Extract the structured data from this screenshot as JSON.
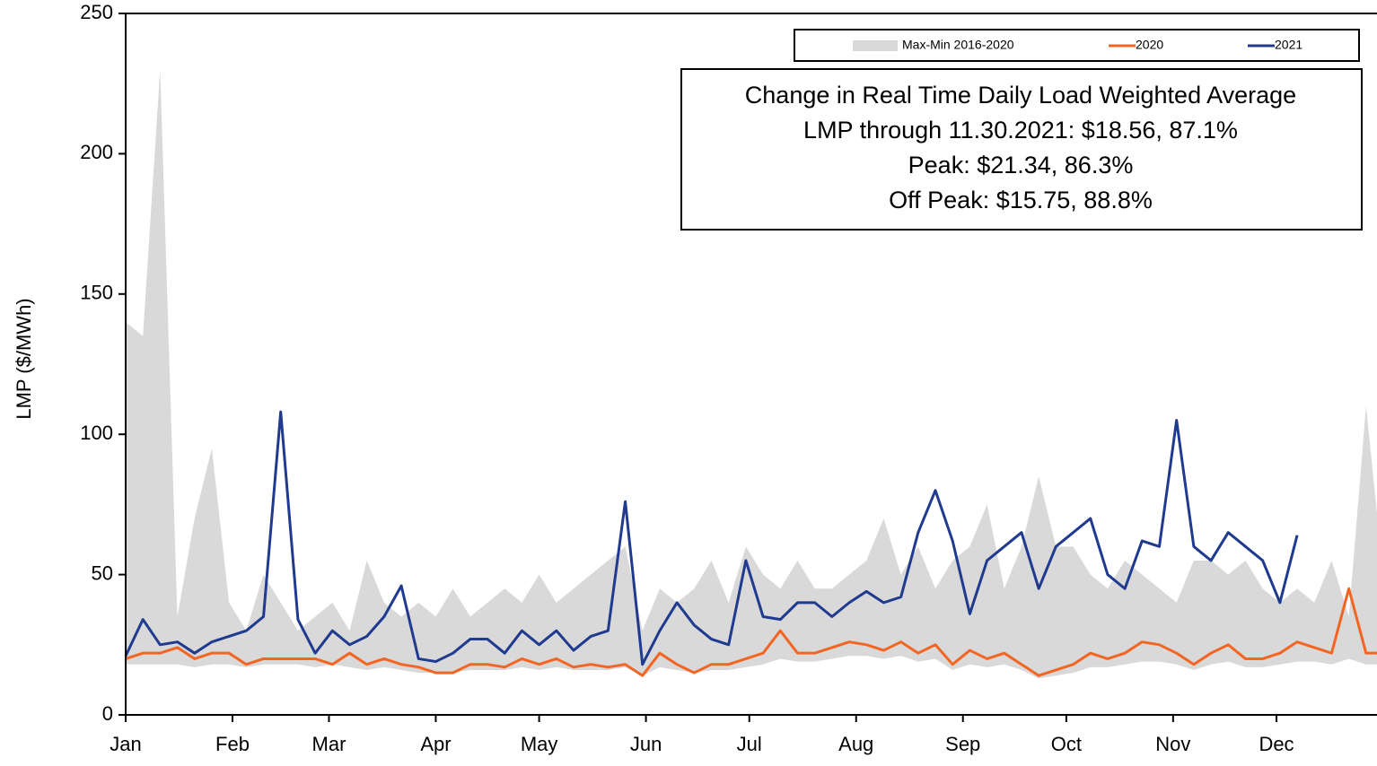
{
  "chart_data": {
    "type": "line",
    "y_label": "LMP ($/MWh)",
    "x": [
      0,
      5,
      10,
      15,
      20,
      25,
      30,
      35,
      40,
      45,
      50,
      55,
      60,
      65,
      70,
      75,
      80,
      85,
      90,
      95,
      100,
      105,
      110,
      115,
      120,
      125,
      130,
      135,
      140,
      145,
      150,
      155,
      160,
      165,
      170,
      175,
      180,
      185,
      190,
      195,
      200,
      205,
      210,
      215,
      220,
      225,
      230,
      235,
      240,
      245,
      250,
      255,
      260,
      265,
      270,
      275,
      280,
      285,
      290,
      295,
      300,
      305,
      310,
      315,
      320,
      325,
      330,
      335,
      340,
      345,
      350,
      355,
      360,
      365
    ],
    "xlim": [
      0,
      365
    ],
    "xticks": [
      {
        "value": 0,
        "label": "Jan"
      },
      {
        "value": 31,
        "label": "Feb"
      },
      {
        "value": 59,
        "label": "Mar"
      },
      {
        "value": 90,
        "label": "Apr"
      },
      {
        "value": 120,
        "label": "May"
      },
      {
        "value": 151,
        "label": "Jun"
      },
      {
        "value": 181,
        "label": "Jul"
      },
      {
        "value": 212,
        "label": "Aug"
      },
      {
        "value": 243,
        "label": "Sep"
      },
      {
        "value": 273,
        "label": "Oct"
      },
      {
        "value": 304,
        "label": "Nov"
      },
      {
        "value": 334,
        "label": "Dec"
      }
    ],
    "ylim": [
      0,
      250
    ],
    "yticks": [
      0,
      50,
      100,
      150,
      200,
      250
    ],
    "series": [
      {
        "name": "Max-Min 2016-2020",
        "type": "area",
        "color": "#d9d9d9",
        "high": [
          140,
          135,
          230,
          35,
          70,
          95,
          40,
          30,
          50,
          40,
          30,
          35,
          40,
          30,
          55,
          40,
          35,
          40,
          35,
          45,
          35,
          40,
          45,
          40,
          50,
          40,
          45,
          50,
          55,
          60,
          30,
          45,
          40,
          45,
          55,
          40,
          60,
          50,
          45,
          55,
          45,
          45,
          50,
          55,
          70,
          50,
          60,
          45,
          55,
          60,
          75,
          45,
          60,
          85,
          60,
          60,
          50,
          45,
          55,
          50,
          45,
          40,
          55,
          55,
          50,
          55,
          45,
          40,
          45,
          40,
          55,
          35,
          110,
          50
        ],
        "low": [
          18,
          18,
          18,
          18,
          17,
          18,
          18,
          17,
          18,
          18,
          18,
          17,
          18,
          17,
          16,
          17,
          16,
          15,
          15,
          15,
          16,
          16,
          16,
          17,
          16,
          17,
          16,
          16,
          16,
          17,
          14,
          17,
          16,
          15,
          16,
          16,
          17,
          18,
          20,
          19,
          19,
          20,
          21,
          21,
          20,
          21,
          19,
          20,
          16,
          18,
          17,
          18,
          16,
          13,
          14,
          15,
          17,
          17,
          18,
          19,
          19,
          18,
          16,
          18,
          19,
          17,
          17,
          18,
          19,
          19,
          18,
          20,
          18,
          18
        ]
      },
      {
        "name": "2020",
        "type": "line",
        "color": "#f26522",
        "values": [
          20,
          22,
          22,
          24,
          20,
          22,
          22,
          18,
          20,
          20,
          20,
          20,
          18,
          22,
          18,
          20,
          18,
          17,
          15,
          15,
          18,
          18,
          17,
          20,
          18,
          20,
          17,
          18,
          17,
          18,
          14,
          22,
          18,
          15,
          18,
          18,
          20,
          22,
          30,
          22,
          22,
          24,
          26,
          25,
          23,
          26,
          22,
          25,
          18,
          23,
          20,
          22,
          18,
          14,
          16,
          18,
          22,
          20,
          22,
          26,
          25,
          22,
          18,
          22,
          25,
          20,
          20,
          22,
          26,
          24,
          22,
          45,
          22,
          22
        ]
      },
      {
        "name": "2021",
        "type": "line",
        "color": "#1f3a8f",
        "values": [
          21,
          34,
          25,
          26,
          22,
          26,
          28,
          30,
          35,
          108,
          34,
          22,
          30,
          25,
          28,
          35,
          46,
          20,
          19,
          22,
          27,
          27,
          22,
          30,
          25,
          30,
          23,
          28,
          30,
          76,
          18,
          30,
          40,
          32,
          27,
          25,
          55,
          35,
          34,
          40,
          40,
          35,
          40,
          44,
          40,
          42,
          65,
          80,
          62,
          36,
          55,
          60,
          65,
          45,
          60,
          65,
          70,
          50,
          45,
          62,
          60,
          105,
          60,
          55,
          65,
          60,
          55,
          40,
          64,
          null,
          null,
          null,
          null,
          null
        ]
      }
    ],
    "legend": "top-right",
    "annotation": [
      "Change in Real Time Daily Load Weighted Average",
      "LMP through 11.30.2021: $18.56, 87.1%",
      "Peak: $21.34, 86.3%",
      "Off Peak: $15.75, 88.8%"
    ]
  }
}
